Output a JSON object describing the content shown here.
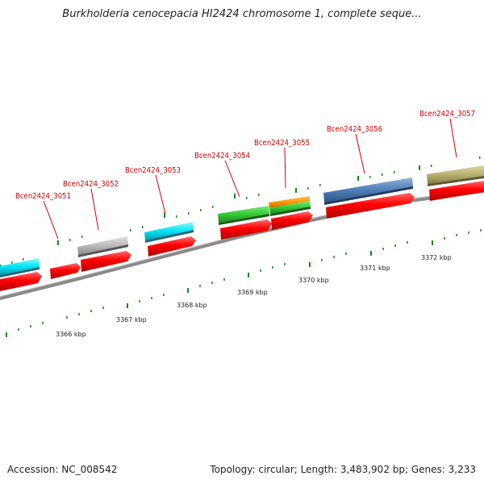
{
  "title": "Burkholderia cenocepacia HI2424 chromosome 1, complete seque...",
  "footer": {
    "accession": "Accession: NC_008542",
    "summary": "Topology: circular; Length: 3,483,902 bp; Genes: 3,233"
  },
  "scale_labels": [
    "3366 kbp",
    "3367 kbp",
    "3368 kbp",
    "3369 kbp",
    "3370 kbp",
    "3371 kbp",
    "3372 kbp"
  ],
  "gene_labels": [
    "Bcen2424_3051",
    "Bcen2424_3052",
    "Bcen2424_3053",
    "Bcen2424_3054",
    "Bcen2424_3055",
    "Bcen2424_3056",
    "Bcen2424_3057"
  ],
  "colors": {
    "cds": "#ff0000",
    "cyan": "#00e5f5",
    "gray": "#bbbbbb",
    "green": "#33cc33",
    "orange": "#ff9900",
    "blue": "#4f7fb8",
    "olive": "#b8b070",
    "backbone": "#888888",
    "tick": "#1a8a1a",
    "label": "#d40000"
  }
}
